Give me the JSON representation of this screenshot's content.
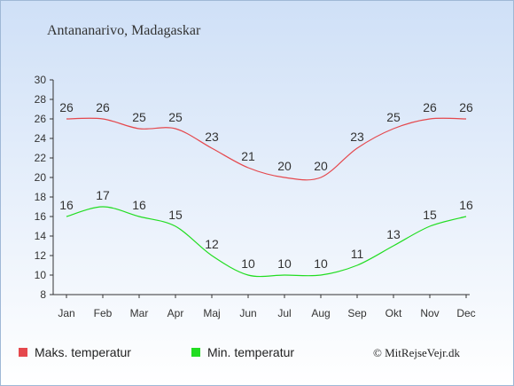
{
  "colors": {
    "max": "#e5484d",
    "min": "#22dd22",
    "axis": "#333333"
  },
  "credit": "© MitRejseVejr.dk",
  "chart_data": {
    "type": "line",
    "title": "Antananarivo, Madagaskar",
    "categories": [
      "Jan",
      "Feb",
      "Mar",
      "Apr",
      "Maj",
      "Jun",
      "Jul",
      "Aug",
      "Sep",
      "Okt",
      "Nov",
      "Dec"
    ],
    "yticks": [
      8,
      10,
      12,
      14,
      16,
      18,
      20,
      22,
      24,
      26,
      28,
      30
    ],
    "ylim": [
      8,
      30
    ],
    "grid": false,
    "legend_position": "bottom",
    "series": [
      {
        "name": "Maks. temperatur",
        "values": [
          26,
          26,
          25,
          25,
          23,
          21,
          20,
          20,
          23,
          25,
          26,
          26
        ]
      },
      {
        "name": "Min. temperatur",
        "values": [
          16,
          17,
          16,
          15,
          12,
          10,
          10,
          10,
          11,
          13,
          15,
          16
        ]
      }
    ]
  }
}
